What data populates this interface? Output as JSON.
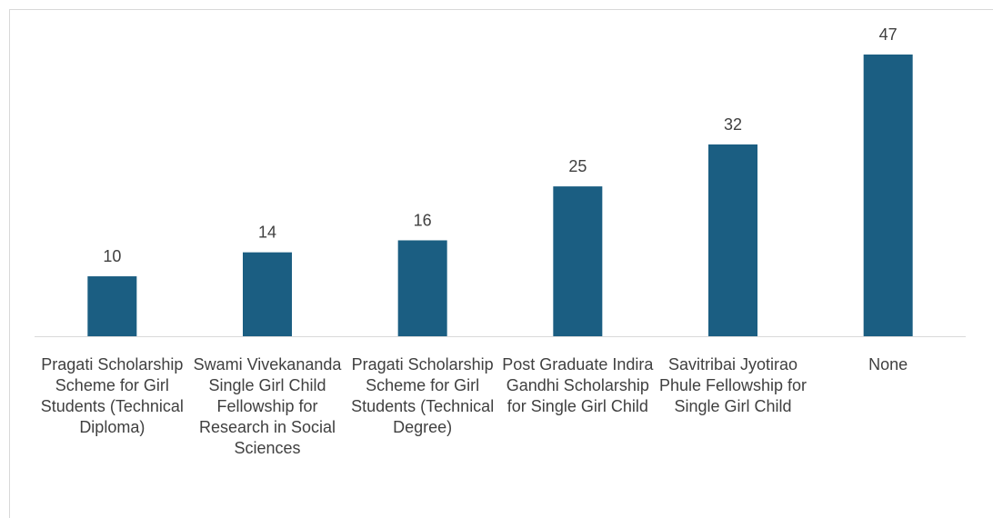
{
  "chart_data": {
    "type": "bar",
    "categories": [
      "Pragati Scholarship Scheme for Girl Students (Technical Diploma)",
      "Swami Vivekananda Single Girl Child Fellowship for Research in Social Sciences",
      "Pragati Scholarship Scheme for Girl Students (Technical Degree)",
      "Post Graduate Indira Gandhi Scholarship for Single Girl Child",
      "Savitribai Jyotirao Phule Fellowship for Single Girl Child",
      "None"
    ],
    "values": [
      10,
      14,
      16,
      25,
      32,
      47
    ],
    "color": "#1b5e82"
  }
}
